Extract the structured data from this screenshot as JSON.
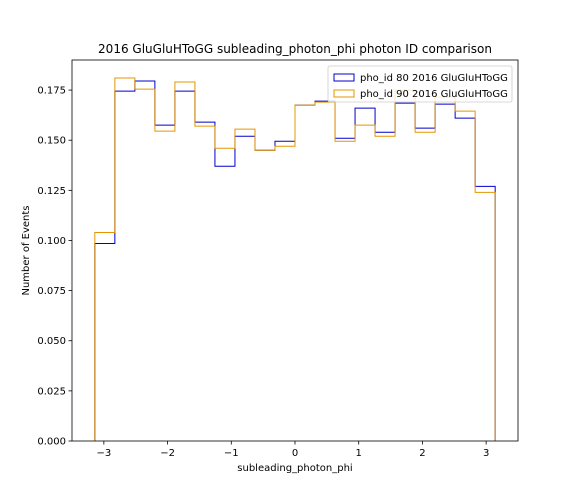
{
  "chart_data": {
    "type": "step-histogram",
    "title": "2016 GluGluHToGG subleading_photon_phi photon ID comparison",
    "xlabel": "subleading_photon_phi",
    "ylabel": "Number of Events",
    "xlim": [
      -3.5,
      3.5
    ],
    "ylim": [
      0.0,
      0.19
    ],
    "xticks": [
      -3,
      -2,
      -1,
      0,
      1,
      2,
      3
    ],
    "yticks": [
      0.0,
      0.025,
      0.05,
      0.075,
      0.1,
      0.125,
      0.15,
      0.175
    ],
    "ytick_labels": [
      "0.000",
      "0.025",
      "0.050",
      "0.075",
      "0.100",
      "0.125",
      "0.150",
      "0.175"
    ],
    "bin_edges": [
      -3.1416,
      -2.8274,
      -2.5133,
      -2.1991,
      -1.885,
      -1.5708,
      -1.2566,
      -0.9425,
      -0.6283,
      -0.3142,
      0.0,
      0.3142,
      0.6283,
      0.9425,
      1.2566,
      1.5708,
      1.885,
      2.1991,
      2.5133,
      2.8274,
      3.1416
    ],
    "series": [
      {
        "name": "pho_id 80 2016 GluGluHToGG",
        "color": "#0000cc",
        "values": [
          0.0985,
          0.1745,
          0.1795,
          0.1575,
          0.1745,
          0.159,
          0.137,
          0.152,
          0.145,
          0.1495,
          0.1675,
          0.1695,
          0.151,
          0.166,
          0.154,
          0.1685,
          0.156,
          0.168,
          0.161,
          0.127
        ]
      },
      {
        "name": "pho_id 90 2016 GluGluHToGG",
        "color": "#e69500",
        "values": [
          0.104,
          0.181,
          0.1755,
          0.1545,
          0.179,
          0.157,
          0.146,
          0.1555,
          0.145,
          0.147,
          0.1675,
          0.169,
          0.1495,
          0.1575,
          0.152,
          0.175,
          0.154,
          0.1715,
          0.1645,
          0.124
        ]
      }
    ],
    "legend_position": "top-right",
    "grid": false
  }
}
